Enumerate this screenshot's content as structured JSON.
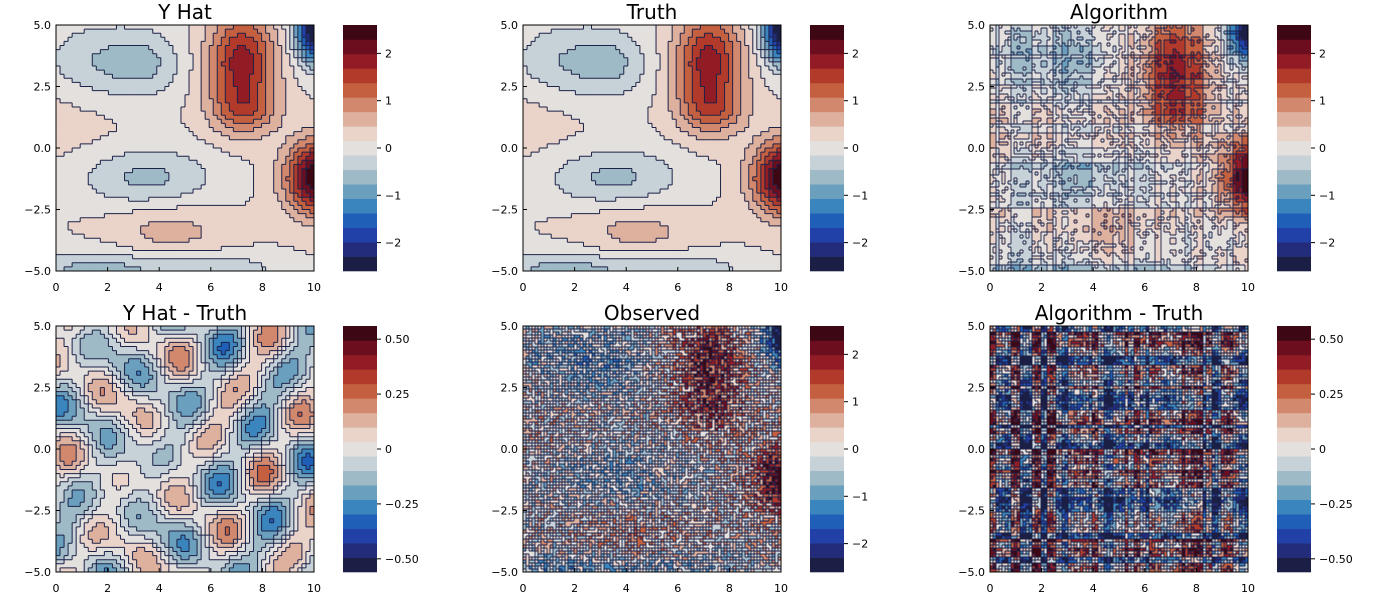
{
  "palette": [
    "#1b1e45",
    "#232c7a",
    "#2140a8",
    "#1f5fb8",
    "#3a85bd",
    "#6aa0bd",
    "#9fbac7",
    "#c7d2d8",
    "#e3e0de",
    "#ead3c9",
    "#deb09e",
    "#d2886c",
    "#c4603f",
    "#b23a2a",
    "#921c25",
    "#6d0e1f",
    "#3d0713"
  ],
  "chart_data": [
    {
      "type": "heatmap",
      "title": "Y Hat",
      "field": "smooth",
      "xlim": [
        0,
        10
      ],
      "ylim": [
        -5,
        5
      ],
      "x_ticks": [
        0,
        2,
        4,
        6,
        8,
        10
      ],
      "y_ticks": [
        5.0,
        2.5,
        0.0,
        -2.5,
        -5.0
      ],
      "y_tick_labels": [
        "5.0",
        "2.5",
        "0.0",
        "−2.5",
        "−5.0"
      ],
      "x_tick_labels": [
        "0",
        "2",
        "4",
        "6",
        "8",
        "10"
      ],
      "colorbar": {
        "range": [
          -2.6,
          2.6
        ],
        "ticks": [
          2,
          1,
          0,
          -1,
          -2
        ],
        "labels": [
          "2",
          "1",
          "0",
          "−1",
          "−2"
        ]
      }
    },
    {
      "type": "heatmap",
      "title": "Truth",
      "field": "smooth",
      "xlim": [
        0,
        10
      ],
      "ylim": [
        -5,
        5
      ],
      "x_ticks": [
        0,
        2,
        4,
        6,
        8,
        10
      ],
      "y_ticks": [
        5.0,
        2.5,
        0.0,
        -2.5,
        -5.0
      ],
      "y_tick_labels": [
        "5.0",
        "2.5",
        "0.0",
        "−2.5",
        "−5.0"
      ],
      "x_tick_labels": [
        "0",
        "2",
        "4",
        "6",
        "8",
        "10"
      ],
      "colorbar": {
        "range": [
          -2.6,
          2.6
        ],
        "ticks": [
          2,
          1,
          0,
          -1,
          -2
        ],
        "labels": [
          "2",
          "1",
          "0",
          "−1",
          "−2"
        ]
      }
    },
    {
      "type": "heatmap",
      "title": "Algorithm",
      "field": "algorithm",
      "xlim": [
        0,
        10
      ],
      "ylim": [
        -5,
        5
      ],
      "x_ticks": [
        0,
        2,
        4,
        6,
        8,
        10
      ],
      "y_ticks": [
        5.0,
        2.5,
        0.0,
        -2.5,
        -5.0
      ],
      "y_tick_labels": [
        "5.0",
        "2.5",
        "0.0",
        "−2.5",
        "−5.0"
      ],
      "x_tick_labels": [
        "0",
        "2",
        "4",
        "6",
        "8",
        "10"
      ],
      "colorbar": {
        "range": [
          -2.6,
          2.6
        ],
        "ticks": [
          2,
          1,
          0,
          -1,
          -2
        ],
        "labels": [
          "2",
          "1",
          "0",
          "−1",
          "−2"
        ]
      }
    },
    {
      "type": "heatmap",
      "title": "Y Hat - Truth",
      "field": "diff",
      "xlim": [
        0,
        10
      ],
      "ylim": [
        -5,
        5
      ],
      "x_ticks": [
        0,
        2,
        4,
        6,
        8,
        10
      ],
      "y_ticks": [
        5.0,
        2.5,
        0.0,
        -2.5,
        -5.0
      ],
      "y_tick_labels": [
        "5.0",
        "2.5",
        "0.0",
        "−2.5",
        "−5.0"
      ],
      "x_tick_labels": [
        "0",
        "2",
        "4",
        "6",
        "8",
        "10"
      ],
      "colorbar": {
        "range": [
          -0.56,
          0.56
        ],
        "ticks": [
          0.5,
          0.25,
          0,
          -0.25,
          -0.5
        ],
        "labels": [
          "0.50",
          "0.25",
          "0",
          "−0.25",
          "−0.50"
        ]
      }
    },
    {
      "type": "heatmap",
      "title": "Observed",
      "field": "observed",
      "xlim": [
        0,
        10
      ],
      "ylim": [
        -5,
        5
      ],
      "x_ticks": [
        0,
        2,
        4,
        6,
        8,
        10
      ],
      "y_ticks": [
        5.0,
        2.5,
        0.0,
        -2.5,
        -5.0
      ],
      "y_tick_labels": [
        "5.0",
        "2.5",
        "0.0",
        "−2.5",
        "−5.0"
      ],
      "x_tick_labels": [
        "0",
        "2",
        "4",
        "6",
        "8",
        "10"
      ],
      "colorbar": {
        "range": [
          -2.6,
          2.6
        ],
        "ticks": [
          2,
          1,
          0,
          -1,
          -2
        ],
        "labels": [
          "2",
          "1",
          "0",
          "−1",
          "−2"
        ]
      }
    },
    {
      "type": "heatmap",
      "title": "Algorithm - Truth",
      "field": "algdiff",
      "xlim": [
        0,
        10
      ],
      "ylim": [
        -5,
        5
      ],
      "x_ticks": [
        0,
        2,
        4,
        6,
        8,
        10
      ],
      "y_ticks": [
        5.0,
        2.5,
        0.0,
        -2.5,
        -5.0
      ],
      "y_tick_labels": [
        "5.0",
        "2.5",
        "0.0",
        "−2.5",
        "−5.0"
      ],
      "x_tick_labels": [
        "0",
        "2",
        "4",
        "6",
        "8",
        "10"
      ],
      "colorbar": {
        "range": [
          -0.56,
          0.56
        ],
        "ticks": [
          0.5,
          0.25,
          0,
          -0.25,
          -0.5
        ],
        "labels": [
          "0.50",
          "0.25",
          "0",
          "−0.25",
          "−0.50"
        ]
      }
    }
  ]
}
